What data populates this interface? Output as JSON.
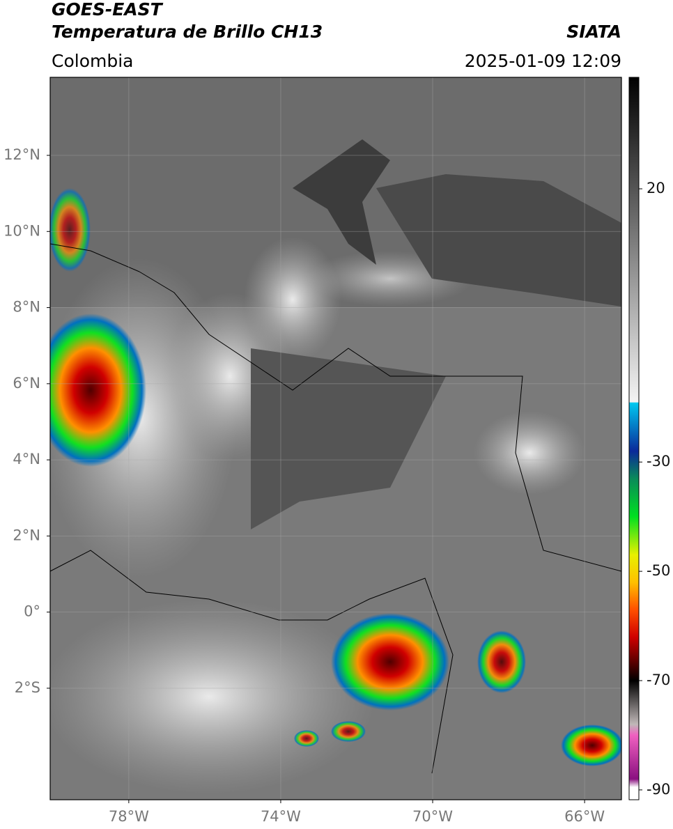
{
  "header": {
    "satellite": "GOES-EAST",
    "product": "Temperatura de Brillo CH13",
    "source": "SIATA",
    "region": "Colombia",
    "datetime": "2025-01-09 12:09"
  },
  "map": {
    "xlim": [
      -80.07,
      -65.03
    ],
    "ylim": [
      -4.93,
      14.05
    ],
    "xticks": [
      {
        "value": -78,
        "label": "78°W"
      },
      {
        "value": -74,
        "label": "74°W"
      },
      {
        "value": -70,
        "label": "70°W"
      },
      {
        "value": -66,
        "label": "66°W"
      }
    ],
    "yticks": [
      {
        "value": 12,
        "label": "12°N"
      },
      {
        "value": 10,
        "label": "10°N"
      },
      {
        "value": 8,
        "label": "8°N"
      },
      {
        "value": 6,
        "label": "6°N"
      },
      {
        "value": 4,
        "label": "4°N"
      },
      {
        "value": 2,
        "label": "2°N"
      },
      {
        "value": 0,
        "label": "0°"
      },
      {
        "value": -2,
        "label": "2°S"
      }
    ],
    "grid": true
  },
  "colorbar": {
    "clim": [
      -91.8,
      40.4
    ],
    "ticks": [
      20,
      -30,
      -50,
      -70,
      -90
    ],
    "stops": [
      [
        40.4,
        "#000000"
      ],
      [
        20,
        "#555555"
      ],
      [
        -19,
        "#f4f4f4"
      ],
      [
        -19.2,
        "#00c8f0"
      ],
      [
        -28,
        "#0a2a9a"
      ],
      [
        -33,
        "#0a8a5a"
      ],
      [
        -40,
        "#00e020"
      ],
      [
        -47,
        "#e8f000"
      ],
      [
        -52,
        "#ffc000"
      ],
      [
        -57,
        "#ff5000"
      ],
      [
        -62,
        "#d00000"
      ],
      [
        -67,
        "#500000"
      ],
      [
        -70,
        "#000000"
      ],
      [
        -78,
        "#c0b8b8"
      ],
      [
        -80,
        "#f060c0"
      ],
      [
        -88,
        "#8a1080"
      ],
      [
        -89.5,
        "#ffffff"
      ],
      [
        -91.8,
        "#ffffff"
      ]
    ]
  }
}
